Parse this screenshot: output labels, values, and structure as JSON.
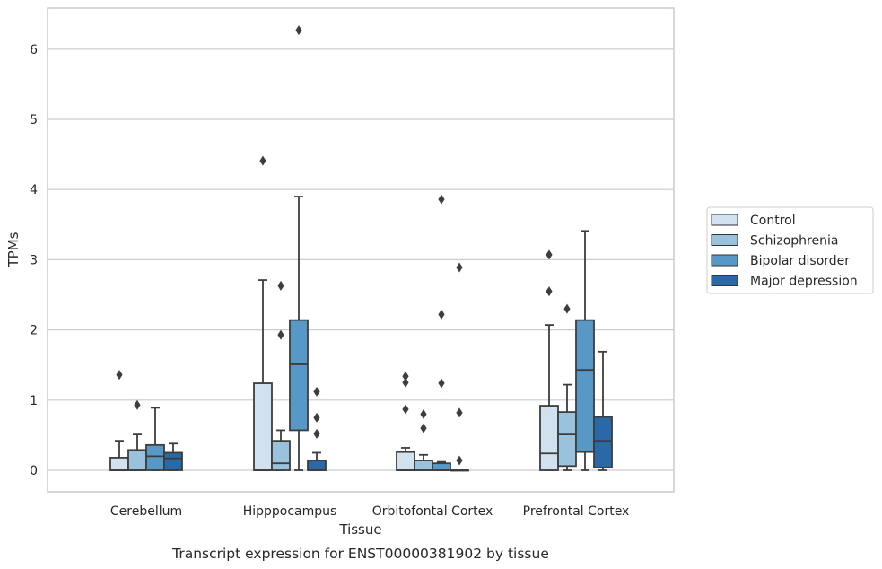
{
  "chart_data": {
    "type": "box",
    "caption": "Transcript expression for ENST00000381902 by tissue",
    "xlabel": "Tissue",
    "ylabel": "TPMs",
    "ylim": [
      -0.3,
      6.6
    ],
    "yticks": [
      0,
      1,
      2,
      3,
      4,
      5,
      6
    ],
    "grid": "horizontal",
    "legend_position": "right",
    "categories": [
      "Cerebellum",
      "Hipppocampus",
      "Orbitofontal Cortex",
      "Prefrontal Cortex"
    ],
    "series": [
      {
        "name": "Control",
        "color": "#d1e1f0",
        "boxes": [
          {
            "q1": 0,
            "median": 0,
            "q3": 0.18,
            "whisker_low": 0,
            "whisker_high": 0.42,
            "outliers": [
              1.36
            ]
          },
          {
            "q1": 0,
            "median": 0,
            "q3": 1.24,
            "whisker_low": 0,
            "whisker_high": 2.71,
            "outliers": [
              4.41
            ]
          },
          {
            "q1": 0,
            "median": 0,
            "q3": 0.26,
            "whisker_low": 0,
            "whisker_high": 0.32,
            "outliers": [
              0.87,
              1.25,
              1.34
            ]
          },
          {
            "q1": 0,
            "median": 0.24,
            "q3": 0.92,
            "whisker_low": 0,
            "whisker_high": 2.07,
            "outliers": [
              2.55,
              3.07
            ]
          }
        ]
      },
      {
        "name": "Schizophrenia",
        "color": "#9ac2dc",
        "boxes": [
          {
            "q1": 0,
            "median": 0,
            "q3": 0.29,
            "whisker_low": 0,
            "whisker_high": 0.51,
            "outliers": [
              0.93
            ]
          },
          {
            "q1": 0,
            "median": 0.1,
            "q3": 0.42,
            "whisker_low": 0,
            "whisker_high": 0.57,
            "outliers": [
              1.93,
              2.63
            ]
          },
          {
            "q1": 0,
            "median": 0,
            "q3": 0.14,
            "whisker_low": 0,
            "whisker_high": 0.22,
            "outliers": [
              0.6,
              0.8
            ]
          },
          {
            "q1": 0.06,
            "median": 0.51,
            "q3": 0.83,
            "whisker_low": 0,
            "whisker_high": 1.22,
            "outliers": [
              2.3
            ]
          }
        ]
      },
      {
        "name": "Bipolar disorder",
        "color": "#5798c7",
        "boxes": [
          {
            "q1": 0,
            "median": 0.2,
            "q3": 0.36,
            "whisker_low": 0,
            "whisker_high": 0.89,
            "outliers": []
          },
          {
            "q1": 0.57,
            "median": 1.51,
            "q3": 2.14,
            "whisker_low": 0,
            "whisker_high": 3.9,
            "outliers": [
              6.27
            ]
          },
          {
            "q1": 0,
            "median": 0,
            "q3": 0.1,
            "whisker_low": 0,
            "whisker_high": 0.12,
            "outliers": [
              1.24,
              2.22,
              3.86
            ]
          },
          {
            "q1": 0.26,
            "median": 1.43,
            "q3": 2.14,
            "whisker_low": 0,
            "whisker_high": 3.41,
            "outliers": []
          }
        ]
      },
      {
        "name": "Major depression",
        "color": "#2a69a7",
        "boxes": [
          {
            "q1": 0,
            "median": 0.17,
            "q3": 0.25,
            "whisker_low": 0,
            "whisker_high": 0.38,
            "outliers": []
          },
          {
            "q1": 0,
            "median": 0,
            "q3": 0.14,
            "whisker_low": 0,
            "whisker_high": 0.25,
            "outliers": [
              0.52,
              0.75,
              1.12
            ]
          },
          {
            "q1": 0,
            "median": 0,
            "q3": 0,
            "whisker_low": 0,
            "whisker_high": 0,
            "outliers": [
              0.14,
              0.82,
              2.89
            ]
          },
          {
            "q1": 0.04,
            "median": 0.42,
            "q3": 0.76,
            "whisker_low": 0,
            "whisker_high": 1.69,
            "outliers": []
          }
        ]
      }
    ]
  }
}
